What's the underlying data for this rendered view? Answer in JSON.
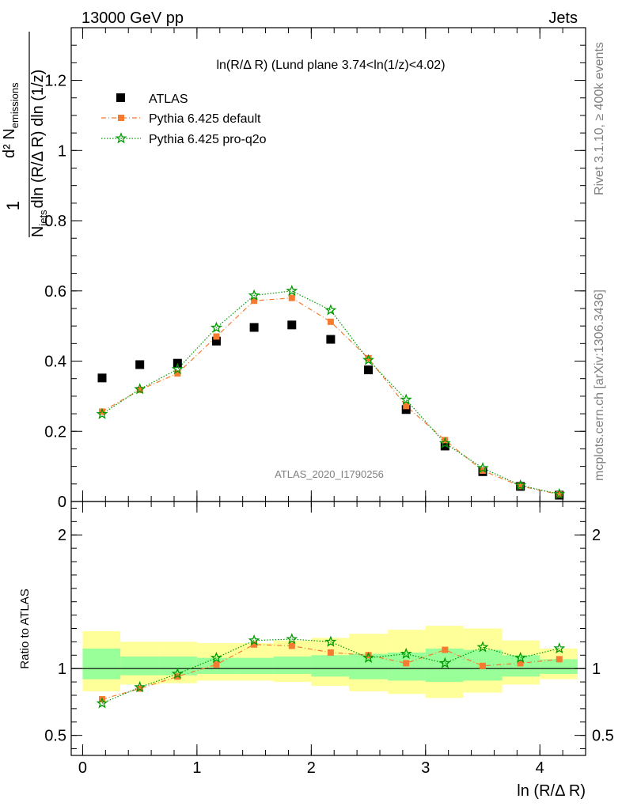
{
  "header": {
    "left": "13000 GeV pp",
    "right": "Jets"
  },
  "side": {
    "rivet": "Rivet 3.1.10, ≥ 400k events",
    "mcplots": "mcplots.cern.ch [arXiv:1306.3436]"
  },
  "chart_data": [
    {
      "type": "scatter",
      "title": "ln(R/Δ R) (Lund plane 3.74<ln(1/z)<4.02)",
      "watermark": "ATLAS_2020_I1790256",
      "ylabel_parts": {
        "frac_num": "1",
        "frac_den": "N",
        "frac_den_sub": "jets",
        "d2": "d² N",
        "d2_sub": "emissions",
        "den": "dln (R/Δ R) dln (1/z)"
      },
      "xlim": [
        -0.1,
        4.4
      ],
      "ylim": [
        0,
        1.35
      ],
      "y_ticks": [
        {
          "v": 0,
          "label": "0"
        },
        {
          "v": 0.2,
          "label": "0.2"
        },
        {
          "v": 0.4,
          "label": "0.4"
        },
        {
          "v": 0.6,
          "label": "0.6"
        },
        {
          "v": 0.8,
          "label": "0.8"
        },
        {
          "v": 1,
          "label": "1"
        },
        {
          "v": 1.2,
          "label": "1.2"
        }
      ],
      "x": [
        0.17,
        0.5,
        0.83,
        1.17,
        1.5,
        1.83,
        2.17,
        2.5,
        2.83,
        3.17,
        3.5,
        3.83,
        4.17
      ],
      "series": [
        {
          "name": "ATLAS",
          "color": "#000000",
          "marker": "square",
          "line": "none",
          "values": [
            0.352,
            0.39,
            0.394,
            0.457,
            0.496,
            0.503,
            0.462,
            0.375,
            0.262,
            0.158,
            0.085,
            0.043,
            0.018
          ]
        },
        {
          "name": "Pythia 6.425 default",
          "color": "#f47b30",
          "marker": "square-small",
          "line": "dashdot",
          "values": [
            0.256,
            0.318,
            0.365,
            0.47,
            0.572,
            0.58,
            0.512,
            0.408,
            0.272,
            0.175,
            0.088,
            0.044,
            0.02
          ]
        },
        {
          "name": "Pythia 6.425 pro-q2o",
          "color": "#009900",
          "marker": "star",
          "line": "dotted",
          "values": [
            0.249,
            0.32,
            0.377,
            0.495,
            0.587,
            0.6,
            0.545,
            0.403,
            0.29,
            0.166,
            0.095,
            0.046,
            0.021
          ]
        }
      ]
    },
    {
      "type": "line",
      "ylabel": "Ratio to ATLAS",
      "xlabel": "ln (R/Δ R)",
      "xlim": [
        -0.1,
        4.4
      ],
      "ylim": [
        0.35,
        2.25
      ],
      "x_ticks": [
        {
          "v": 0,
          "label": "0"
        },
        {
          "v": 1,
          "label": "1"
        },
        {
          "v": 2,
          "label": "2"
        },
        {
          "v": 3,
          "label": "3"
        },
        {
          "v": 4,
          "label": "4"
        }
      ],
      "y_ticks": [
        {
          "v": 0.5,
          "label": "0.5"
        },
        {
          "v": 1,
          "label": "1"
        },
        {
          "v": 2,
          "label": "2"
        }
      ],
      "bin_edges": [
        0,
        0.33,
        0.67,
        1.0,
        1.33,
        1.67,
        2.0,
        2.33,
        2.67,
        3.0,
        3.33,
        3.67,
        4.0,
        4.33
      ],
      "band_yellow": [
        [
          0.83,
          1.28
        ],
        [
          0.88,
          1.2
        ],
        [
          0.89,
          1.2
        ],
        [
          0.91,
          1.19
        ],
        [
          0.91,
          1.19
        ],
        [
          0.9,
          1.21
        ],
        [
          0.87,
          1.23
        ],
        [
          0.83,
          1.26
        ],
        [
          0.81,
          1.29
        ],
        [
          0.78,
          1.32
        ],
        [
          0.82,
          1.3
        ],
        [
          0.88,
          1.21
        ],
        [
          0.92,
          1.15
        ]
      ],
      "band_green": [
        [
          0.92,
          1.15
        ],
        [
          0.95,
          1.09
        ],
        [
          0.95,
          1.09
        ],
        [
          0.96,
          1.08
        ],
        [
          0.96,
          1.08
        ],
        [
          0.96,
          1.09
        ],
        [
          0.94,
          1.1
        ],
        [
          0.92,
          1.11
        ],
        [
          0.91,
          1.12
        ],
        [
          0.9,
          1.15
        ],
        [
          0.91,
          1.14
        ],
        [
          0.94,
          1.1
        ],
        [
          0.96,
          1.07
        ]
      ],
      "x": [
        0.17,
        0.5,
        0.83,
        1.17,
        1.5,
        1.83,
        2.17,
        2.5,
        2.83,
        3.17,
        3.5,
        3.83,
        4.17
      ],
      "series": [
        {
          "name": "Pythia 6.425 default",
          "color": "#f47b30",
          "marker": "square-small",
          "line": "dashdot",
          "values": [
            0.77,
            0.85,
            0.94,
            1.03,
            1.18,
            1.17,
            1.12,
            1.1,
            1.04,
            1.14,
            1.02,
            1.04,
            1.07
          ]
        },
        {
          "name": "Pythia 6.425 pro-q2o",
          "color": "#009900",
          "marker": "star",
          "line": "dotted",
          "values": [
            0.74,
            0.86,
            0.96,
            1.08,
            1.21,
            1.22,
            1.2,
            1.08,
            1.11,
            1.04,
            1.16,
            1.08,
            1.15
          ]
        }
      ]
    }
  ]
}
